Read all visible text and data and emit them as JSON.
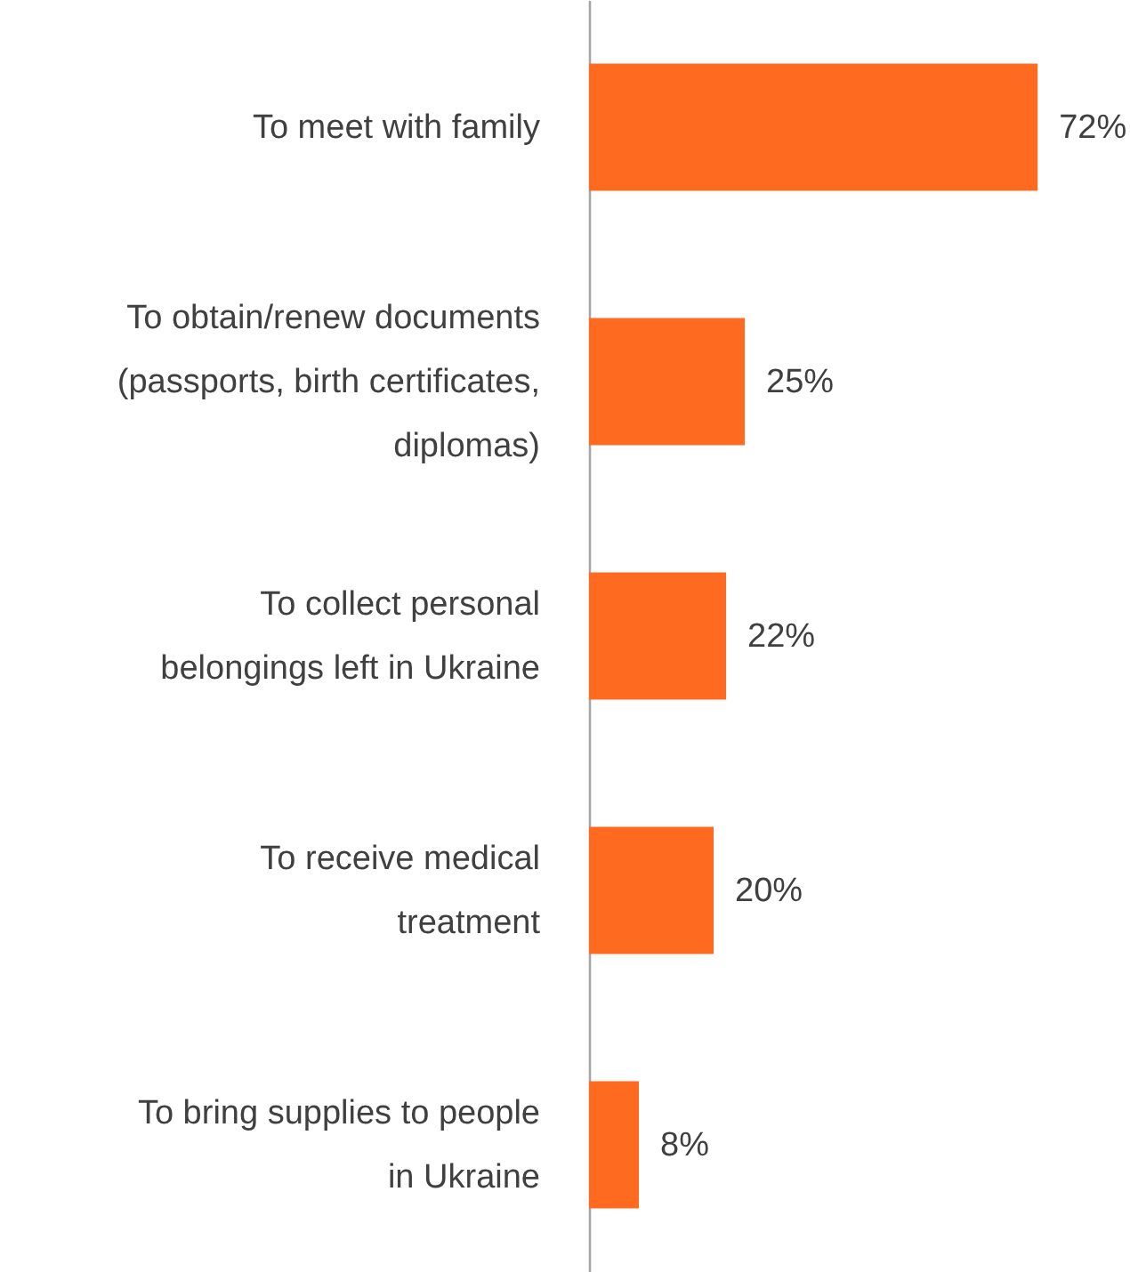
{
  "chart_data": {
    "type": "bar",
    "orientation": "horizontal",
    "categories": [
      "To meet with family",
      "To obtain/renew documents (passports, birth certificates, diplomas)",
      "To collect personal belongings left in Ukraine",
      "To receive medical treatment",
      "To bring supplies to people in Ukraine"
    ],
    "values": [
      72,
      25,
      22,
      20,
      8
    ],
    "value_labels": [
      "72%",
      "25%",
      "22%",
      "20%",
      "8%"
    ],
    "color": "#ff6a21"
  }
}
